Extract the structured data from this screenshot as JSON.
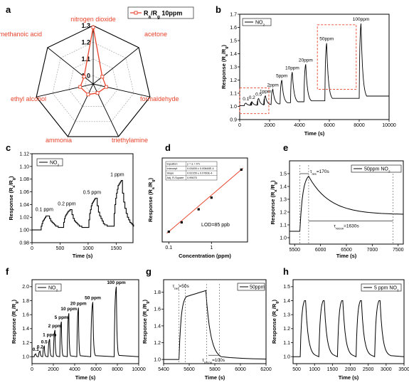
{
  "chart_data": [
    {
      "panel": "a",
      "type": "radar",
      "axes": [
        "nitrogen dioxide",
        "acetone",
        "formaldehyde",
        "triethylamine",
        "ammonia",
        "ethyl alcohol",
        "methanoic acid"
      ],
      "values": [
        1.29,
        1.02,
        1.03,
        1.01,
        1.02,
        1.03,
        1.02
      ],
      "ticks": [
        "1.0",
        "1.1",
        "1.2",
        "1.3"
      ],
      "range": [
        0.95,
        1.3
      ],
      "legend": "Ra/Rg 10ppm",
      "legend_main": "R",
      "legend_sub1": "a",
      "legend_sep": "/R",
      "legend_sub2": "g",
      "legend_tail": " 10ppm",
      "color": "#e8442c"
    },
    {
      "panel": "b",
      "type": "line",
      "legend_main": "NO",
      "legend_sub": "2",
      "xlabel": "Time (s)",
      "ylabel_main": "Response (R",
      "ylabel_sub1": "a",
      "ylabel_mid": "/R",
      "ylabel_sub2": "g",
      "ylabel_end": ")",
      "xlim": [
        0,
        10000
      ],
      "ylim": [
        0.9,
        1.7
      ],
      "xticks": [
        0,
        2000,
        4000,
        6000,
        8000,
        10000
      ],
      "yticks": [
        0.9,
        1.0,
        1.1,
        1.2,
        1.3,
        1.4,
        1.5,
        1.6,
        1.7
      ],
      "xtick_labels": [
        "0",
        "2000",
        "4000",
        "6000",
        "8000",
        "10000"
      ],
      "ytick_labels": [
        "0.9",
        "1.0",
        "1.1",
        "1.2",
        "1.3",
        "1.4",
        "1.5",
        "1.6",
        "1.7"
      ],
      "pulses": [
        {
          "label": "0.1",
          "t": 300,
          "peak": 1.025
        },
        {
          "label": "0.2",
          "t": 700,
          "peak": 1.035
        },
        {
          "label": "0.5",
          "t": 1150,
          "peak": 1.06
        },
        {
          "label": "1ppm",
          "t": 1600,
          "peak": 1.08
        },
        {
          "label": "2ppm",
          "t": 2100,
          "peak": 1.13
        },
        {
          "label": "5ppm",
          "t": 2700,
          "peak": 1.2
        },
        {
          "label": "10ppm",
          "t": 3400,
          "peak": 1.26
        },
        {
          "label": "20ppm",
          "t": 4300,
          "peak": 1.32
        },
        {
          "label": "50ppm",
          "t": 5700,
          "peak": 1.48
        },
        {
          "label": "100ppm",
          "t": 8000,
          "peak": 1.63
        }
      ],
      "boxes": [
        {
          "x": [
            0,
            1950
          ],
          "y": [
            0.945,
            1.14
          ]
        },
        {
          "x": [
            5200,
            7800
          ],
          "y": [
            1.13,
            1.62
          ]
        }
      ],
      "color": "#000000",
      "box_color": "#e8442c"
    },
    {
      "panel": "c",
      "type": "line",
      "legend_main": "NO",
      "legend_sub": "2",
      "xlabel": "Time (s)",
      "ylabel_main": "Response (R",
      "ylabel_sub1": "a",
      "ylabel_mid": "/R",
      "ylabel_sub2": "g",
      "ylabel_end": ")",
      "xlim": [
        0,
        1800
      ],
      "ylim": [
        0.98,
        1.12
      ],
      "xticks": [
        0,
        500,
        1000,
        1500
      ],
      "yticks": [
        0.98,
        1.0,
        1.02,
        1.04,
        1.06,
        1.08,
        1.1,
        1.12
      ],
      "xtick_labels": [
        "0",
        "500",
        "1000",
        "1500"
      ],
      "ytick_labels": [
        "0.98",
        "1.00",
        "1.02",
        "1.04",
        "1.06",
        "1.08",
        "1.10",
        "1.12"
      ],
      "pulses": [
        {
          "label": "0.1 ppm",
          "t": 150,
          "peak": 1.023
        },
        {
          "label": "0.2 ppm",
          "t": 550,
          "peak": 1.032
        },
        {
          "label": "0.5 ppm",
          "t": 1000,
          "peak": 1.05
        },
        {
          "label": "1 ppm",
          "t": 1450,
          "peak": 1.078
        }
      ],
      "color": "#000000"
    },
    {
      "panel": "d",
      "type": "scatter",
      "xlabel": "Concentration (ppm)",
      "ylabel_main": "Response (R",
      "ylabel_sub1": "a",
      "ylabel_mid": "/R",
      "ylabel_sub2": "g",
      "ylabel_end": ")",
      "xscale": "log",
      "xlim": [
        0.07,
        7
      ],
      "xticks": [
        0.1,
        1
      ],
      "xtick_labels": [
        "0.1",
        "1"
      ],
      "x": [
        0.1,
        0.2,
        0.5,
        1,
        5
      ],
      "y": [
        1.012,
        1.032,
        1.06,
        1.085,
        1.145
      ],
      "fit_color": "#e8442c",
      "annotation": "LOD=85 ppb",
      "fit_table": [
        [
          "Equation",
          "y = a + b*x"
        ],
        [
          "Intercept",
          "0.03455 ± 0.00848E-4"
        ],
        [
          "Slope",
          "0.02155 ± 0.0760E-4"
        ],
        [
          "Adj. R-Square",
          "0.99675"
        ]
      ]
    },
    {
      "panel": "e",
      "type": "line",
      "legend": "50ppm NO2",
      "legend_main": "50ppm NO",
      "legend_sub": "2",
      "xlabel": "Time (s)",
      "ylabel_main": "Response (R",
      "ylabel_sub1": "a",
      "ylabel_mid": "/R",
      "ylabel_sub2": "g",
      "ylabel_end": ")",
      "xlim": [
        5400,
        7600
      ],
      "ylim": [
        0.95,
        1.6
      ],
      "xticks": [
        5500,
        6000,
        6500,
        7000,
        7500
      ],
      "yticks": [
        1.0,
        1.1,
        1.2,
        1.3,
        1.4,
        1.5
      ],
      "xtick_labels": [
        "5500",
        "6000",
        "6500",
        "7000",
        "7500"
      ],
      "ytick_labels": [
        "1.0",
        "1.1",
        "1.2",
        "1.3",
        "1.4",
        "1.5"
      ],
      "on": 5600,
      "off": 5770,
      "peak": 1.48,
      "base": 1.18,
      "tau_res": "τres=170s",
      "tau_res_main": "τ",
      "tau_res_sub": "res",
      "tau_res_tail": "=170s",
      "tau_recov": "τrecov=1630s",
      "tau_recov_main": "τ",
      "tau_recov_sub": "recov",
      "tau_recov_tail": "=1630s",
      "recov_end": 7400,
      "color": "#000000"
    },
    {
      "panel": "f",
      "type": "line",
      "legend_main": "NO",
      "legend_sub": "2",
      "xlabel": "Time (s)",
      "ylabel_main": "Response (R",
      "ylabel_sub1": "a",
      "ylabel_mid": "/R",
      "ylabel_sub2": "g",
      "ylabel_end": ")",
      "xlim": [
        0,
        10000
      ],
      "ylim": [
        0.9,
        2.1
      ],
      "xticks": [
        0,
        2000,
        4000,
        6000,
        8000,
        10000
      ],
      "yticks": [
        1.0,
        1.2,
        1.4,
        1.6,
        1.8,
        2.0
      ],
      "xtick_labels": [
        "0",
        "2000",
        "4000",
        "6000",
        "8000",
        "10000"
      ],
      "ytick_labels": [
        "1.0",
        "1.2",
        "1.4",
        "1.6",
        "1.8",
        "2.0"
      ],
      "pulses": [
        {
          "label": "0.1",
          "t": 200,
          "peak": 1.04
        },
        {
          "label": "0.2",
          "t": 600,
          "peak": 1.08
        },
        {
          "label": "0.5",
          "t": 1000,
          "peak": 1.15
        },
        {
          "label": "1 ppm",
          "t": 1500,
          "peak": 1.25
        },
        {
          "label": "2 ppm",
          "t": 2000,
          "peak": 1.38
        },
        {
          "label": "5 ppm",
          "t": 2600,
          "peak": 1.5
        },
        {
          "label": "10 ppm",
          "t": 3300,
          "peak": 1.62
        },
        {
          "label": "20 ppm",
          "t": 4200,
          "peak": 1.7
        },
        {
          "label": "50 ppm",
          "t": 5500,
          "peak": 1.78
        },
        {
          "label": "100 ppm",
          "t": 7700,
          "peak": 2.0
        }
      ],
      "color": "#000000"
    },
    {
      "panel": "g",
      "type": "line",
      "legend": "50ppm",
      "xlabel": "Time (s)",
      "ylabel_main": "Response (R",
      "ylabel_sub1": "a",
      "ylabel_mid": "/R",
      "ylabel_sub2": "g",
      "ylabel_end": ")",
      "xlim": [
        5400,
        6200
      ],
      "ylim": [
        0.95,
        1.95
      ],
      "xticks": [
        5400,
        5600,
        5800,
        6000,
        6200
      ],
      "yticks": [
        1.0,
        1.2,
        1.4,
        1.6,
        1.8
      ],
      "xtick_labels": [
        "5400",
        "5600",
        "5800",
        "6000",
        "6200"
      ],
      "ytick_labels": [
        "1.0",
        "1.2",
        "1.4",
        "1.6",
        "1.8"
      ],
      "on": 5520,
      "off": 5730,
      "peak": 1.82,
      "base": 1.0,
      "tau_res": "τres=50s",
      "tau_res_main": "τ",
      "tau_res_sub": "res",
      "tau_res_tail": "=50s",
      "tau_recov": "τrecov=100s",
      "tau_recov_main": "τ",
      "tau_recov_sub": "recov",
      "tau_recov_tail": "=100s",
      "color": "#000000"
    },
    {
      "panel": "h",
      "type": "line",
      "legend": "5 ppm NO2",
      "legend_main": "5 ppm NO",
      "legend_sub": "2",
      "xlabel": "Time (s)",
      "ylabel_main": "Response (R",
      "ylabel_sub1": "a",
      "ylabel_mid": "/R",
      "ylabel_sub2": "g",
      "ylabel_end": ")",
      "xlim": [
        400,
        3500
      ],
      "ylim": [
        0.95,
        1.55
      ],
      "xticks": [
        500,
        1000,
        1500,
        2000,
        2500,
        3000,
        3500
      ],
      "yticks": [
        1.0,
        1.1,
        1.2,
        1.3,
        1.4,
        1.5
      ],
      "xtick_labels": [
        "500",
        "1000",
        "1500",
        "2000",
        "2500",
        "3000",
        "3500"
      ],
      "ytick_labels": [
        "1.0",
        "1.1",
        "1.2",
        "1.3",
        "1.4",
        "1.5"
      ],
      "cycles": [
        600,
        1120,
        1640,
        2160,
        2680,
        3200
      ],
      "peak": 1.4,
      "base": 1.0,
      "color": "#000000"
    }
  ]
}
